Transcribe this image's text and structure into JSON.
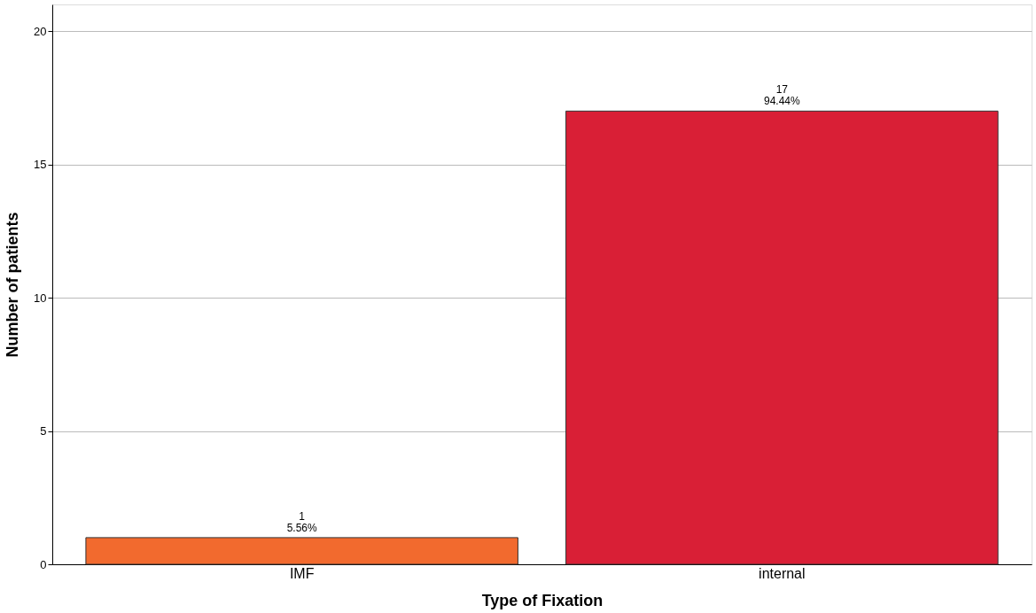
{
  "chart_data": {
    "type": "bar",
    "xlabel": "Type of Fixation",
    "ylabel": "Number of patients",
    "categories": [
      "IMF",
      "internal"
    ],
    "values": [
      1,
      17
    ],
    "colors": [
      "#f26a2e",
      "#d91f36"
    ],
    "value_labels": [
      "1\n5.56%",
      "17\n94.44%"
    ],
    "ylim": [
      0,
      21
    ],
    "yticks": [
      0,
      5,
      10,
      15,
      20
    ],
    "grid": "y"
  }
}
